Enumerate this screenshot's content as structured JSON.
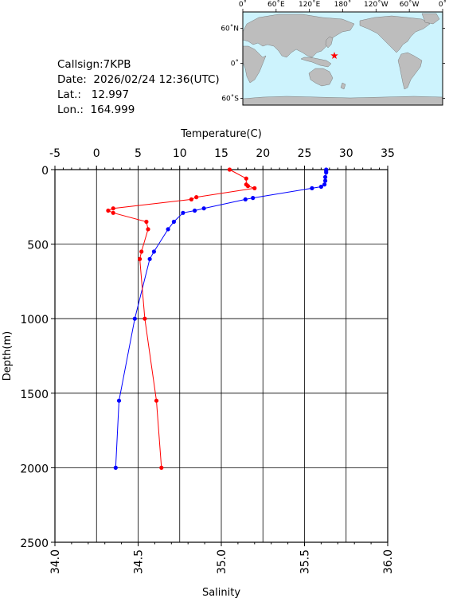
{
  "info": {
    "callsign_line": "Callsign:7KPB",
    "date_line": "Date:  2026/02/24 12:36(UTC)",
    "lat_line": "Lat.:   12.997",
    "lon_line": "Lon.:  164.999"
  },
  "map": {
    "lon_labels": [
      "0˚",
      "60˚E",
      "120˚E",
      "180˚",
      "120˚W",
      "60˚W",
      "0˚"
    ],
    "lat_labels": [
      "60˚N",
      "0˚",
      "60˚S"
    ],
    "ocean_color": "#cdf3fd",
    "land_color": "#bdbdbd",
    "station_marker_color": "#ff0000",
    "station_lon": 164.999,
    "station_lat": 12.997
  },
  "chart_data": {
    "type": "scatter",
    "title": "",
    "ylabel": "Depth(m)",
    "xlabel_top": "Temperature(C)",
    "xlabel_bottom": "Salinity",
    "ylim": [
      2500,
      0
    ],
    "y_ticks": [
      "0",
      "500",
      "1000",
      "1500",
      "2000",
      "2500"
    ],
    "temperature_axis": {
      "range": [
        -5,
        35
      ],
      "ticks": [
        "-5",
        "0",
        "5",
        "10",
        "15",
        "20",
        "25",
        "30",
        "35"
      ]
    },
    "salinity_axis": {
      "range": [
        34.0,
        36.0
      ],
      "ticks": [
        "34.0",
        "34.5",
        "35.0",
        "35.5",
        "36.0"
      ]
    },
    "grid": true,
    "series": [
      {
        "name": "Temperature",
        "color": "#0000ff",
        "axis": "temperature",
        "points": [
          {
            "depth": 0,
            "value": 27.6
          },
          {
            "depth": 10,
            "value": 27.6
          },
          {
            "depth": 20,
            "value": 27.6
          },
          {
            "depth": 50,
            "value": 27.5
          },
          {
            "depth": 75,
            "value": 27.5
          },
          {
            "depth": 100,
            "value": 27.4
          },
          {
            "depth": 115,
            "value": 27.0
          },
          {
            "depth": 125,
            "value": 25.9
          },
          {
            "depth": 190,
            "value": 18.8
          },
          {
            "depth": 200,
            "value": 17.9
          },
          {
            "depth": 260,
            "value": 12.9
          },
          {
            "depth": 275,
            "value": 11.8
          },
          {
            "depth": 290,
            "value": 10.4
          },
          {
            "depth": 350,
            "value": 9.3
          },
          {
            "depth": 400,
            "value": 8.6
          },
          {
            "depth": 550,
            "value": 6.9
          },
          {
            "depth": 600,
            "value": 6.4
          },
          {
            "depth": 1000,
            "value": 4.6
          },
          {
            "depth": 1550,
            "value": 2.7
          },
          {
            "depth": 2000,
            "value": 2.3
          }
        ]
      },
      {
        "name": "Salinity",
        "color": "#ff0000",
        "axis": "salinity",
        "points": [
          {
            "depth": 0,
            "value": 35.05
          },
          {
            "depth": 60,
            "value": 35.15
          },
          {
            "depth": 100,
            "value": 35.15
          },
          {
            "depth": 110,
            "value": 35.16
          },
          {
            "depth": 125,
            "value": 35.2
          },
          {
            "depth": 185,
            "value": 34.85
          },
          {
            "depth": 200,
            "value": 34.82
          },
          {
            "depth": 260,
            "value": 34.35
          },
          {
            "depth": 275,
            "value": 34.32
          },
          {
            "depth": 290,
            "value": 34.35
          },
          {
            "depth": 350,
            "value": 34.55
          },
          {
            "depth": 400,
            "value": 34.56
          },
          {
            "depth": 550,
            "value": 34.52
          },
          {
            "depth": 600,
            "value": 34.51
          },
          {
            "depth": 1000,
            "value": 34.54
          },
          {
            "depth": 1550,
            "value": 34.61
          },
          {
            "depth": 2000,
            "value": 34.64
          }
        ]
      }
    ]
  }
}
